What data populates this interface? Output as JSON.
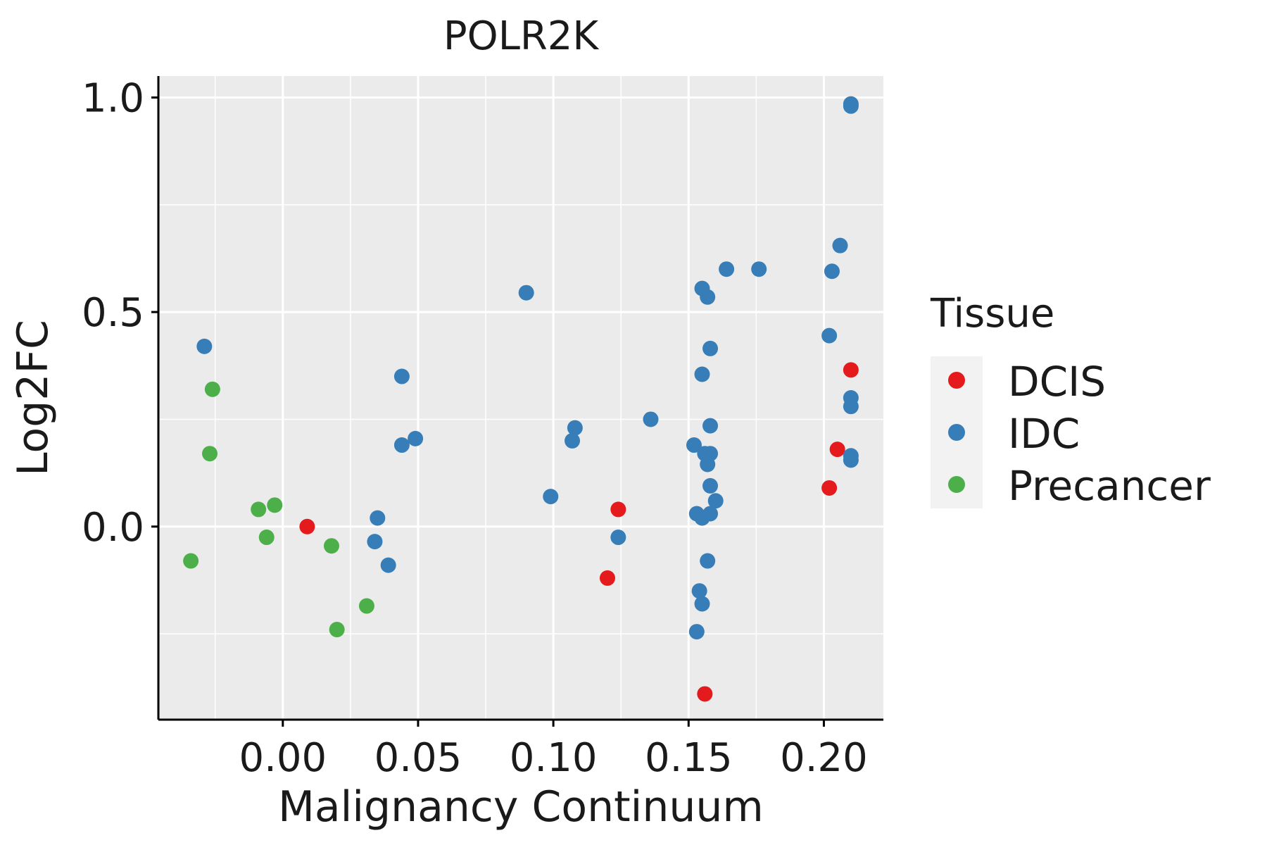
{
  "chart_data": {
    "type": "scatter",
    "title": "POLR2K",
    "xlabel": "Malignancy Continuum",
    "ylabel": "Log2FC",
    "xlim": [
      -0.046,
      0.222
    ],
    "ylim": [
      -0.45,
      1.05
    ],
    "x_ticks": [
      0.0,
      0.05,
      0.1,
      0.15,
      0.2
    ],
    "x_tick_labels": [
      "0.00",
      "0.05",
      "0.10",
      "0.15",
      "0.20"
    ],
    "y_ticks": [
      0.0,
      0.5,
      1.0
    ],
    "y_tick_labels": [
      "0.0",
      "0.5",
      "1.0"
    ],
    "grid": true,
    "legend": {
      "title": "Tissue",
      "placement": "right",
      "entries": [
        {
          "label": "DCIS",
          "color": "#e41a1c"
        },
        {
          "label": "IDC",
          "color": "#377eb8"
        },
        {
          "label": "Precancer",
          "color": "#4daf4a"
        }
      ]
    },
    "series": [
      {
        "name": "DCIS",
        "color": "#e41a1c",
        "points": [
          {
            "x": 0.009,
            "y": 0.0
          },
          {
            "x": 0.12,
            "y": -0.12
          },
          {
            "x": 0.124,
            "y": 0.04
          },
          {
            "x": 0.156,
            "y": -0.39
          },
          {
            "x": 0.202,
            "y": 0.09
          },
          {
            "x": 0.205,
            "y": 0.18
          },
          {
            "x": 0.21,
            "y": 0.365
          }
        ]
      },
      {
        "name": "IDC",
        "color": "#377eb8",
        "points": [
          {
            "x": -0.029,
            "y": 0.42
          },
          {
            "x": 0.034,
            "y": -0.035
          },
          {
            "x": 0.035,
            "y": 0.02
          },
          {
            "x": 0.039,
            "y": -0.09
          },
          {
            "x": 0.044,
            "y": 0.35
          },
          {
            "x": 0.044,
            "y": 0.19
          },
          {
            "x": 0.049,
            "y": 0.205
          },
          {
            "x": 0.09,
            "y": 0.545
          },
          {
            "x": 0.099,
            "y": 0.07
          },
          {
            "x": 0.107,
            "y": 0.2
          },
          {
            "x": 0.108,
            "y": 0.23
          },
          {
            "x": 0.124,
            "y": -0.025
          },
          {
            "x": 0.136,
            "y": 0.25
          },
          {
            "x": 0.152,
            "y": 0.19
          },
          {
            "x": 0.153,
            "y": 0.03
          },
          {
            "x": 0.153,
            "y": -0.245
          },
          {
            "x": 0.154,
            "y": -0.15
          },
          {
            "x": 0.155,
            "y": -0.18
          },
          {
            "x": 0.155,
            "y": 0.02
          },
          {
            "x": 0.155,
            "y": 0.555
          },
          {
            "x": 0.155,
            "y": 0.355
          },
          {
            "x": 0.156,
            "y": 0.17
          },
          {
            "x": 0.157,
            "y": 0.535
          },
          {
            "x": 0.157,
            "y": -0.08
          },
          {
            "x": 0.157,
            "y": 0.145
          },
          {
            "x": 0.158,
            "y": 0.17
          },
          {
            "x": 0.158,
            "y": 0.095
          },
          {
            "x": 0.158,
            "y": 0.03
          },
          {
            "x": 0.158,
            "y": 0.415
          },
          {
            "x": 0.158,
            "y": 0.235
          },
          {
            "x": 0.16,
            "y": 0.06
          },
          {
            "x": 0.164,
            "y": 0.6
          },
          {
            "x": 0.176,
            "y": 0.6
          },
          {
            "x": 0.202,
            "y": 0.445
          },
          {
            "x": 0.203,
            "y": 0.595
          },
          {
            "x": 0.206,
            "y": 0.655
          },
          {
            "x": 0.21,
            "y": 0.98
          },
          {
            "x": 0.21,
            "y": 0.985
          },
          {
            "x": 0.21,
            "y": 0.3
          },
          {
            "x": 0.21,
            "y": 0.28
          },
          {
            "x": 0.21,
            "y": 0.165
          },
          {
            "x": 0.21,
            "y": 0.155
          }
        ]
      },
      {
        "name": "Precancer",
        "color": "#4daf4a",
        "points": [
          {
            "x": -0.034,
            "y": -0.08
          },
          {
            "x": -0.026,
            "y": 0.32
          },
          {
            "x": -0.027,
            "y": 0.17
          },
          {
            "x": -0.009,
            "y": 0.04
          },
          {
            "x": -0.006,
            "y": -0.025
          },
          {
            "x": -0.003,
            "y": 0.05
          },
          {
            "x": 0.018,
            "y": -0.045
          },
          {
            "x": 0.02,
            "y": -0.24
          },
          {
            "x": 0.031,
            "y": -0.185
          }
        ]
      }
    ]
  }
}
